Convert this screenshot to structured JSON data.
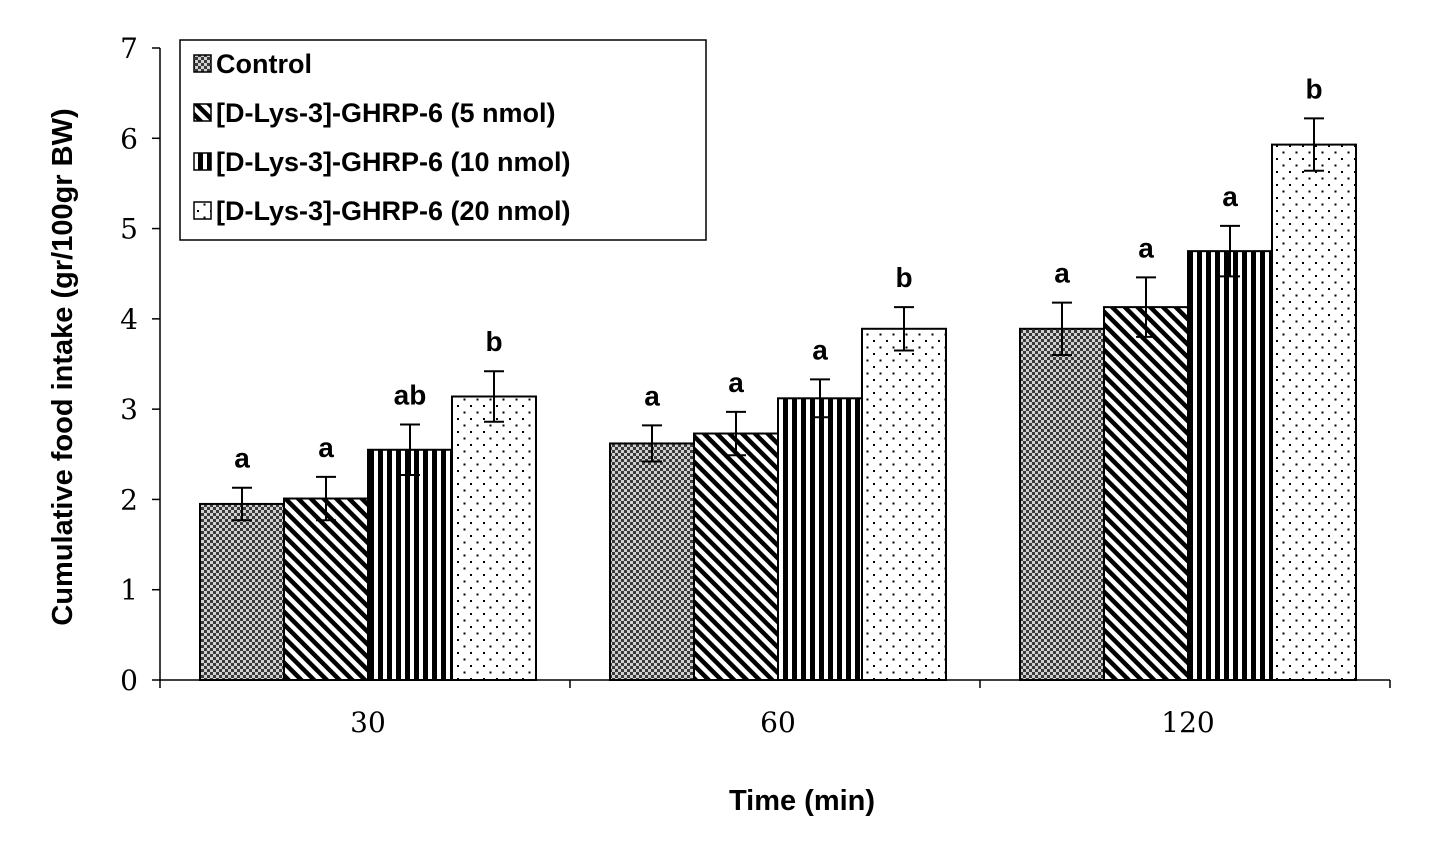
{
  "chart_data": {
    "type": "bar",
    "xlabel": "Time (min)",
    "ylabel": "Cumulative food intake (gr/100gr BW)",
    "ylim": [
      0,
      7
    ],
    "yticks": [
      "0",
      "1",
      "2",
      "3",
      "4",
      "5",
      "6",
      "7"
    ],
    "categories": [
      "30",
      "60",
      "120"
    ],
    "legend_position": "top-left",
    "grid": false,
    "series": [
      {
        "name": "Control",
        "pattern": "checker",
        "values": [
          1.95,
          2.62,
          3.89
        ],
        "errors": [
          0.18,
          0.2,
          0.29
        ],
        "labels": [
          "a",
          "a",
          "a"
        ]
      },
      {
        "name": "[D-Lys-3]-GHRP-6 (5 nmol)",
        "pattern": "diagonal",
        "values": [
          2.01,
          2.73,
          4.13
        ],
        "errors": [
          0.24,
          0.24,
          0.33
        ],
        "labels": [
          "a",
          "a",
          "a"
        ]
      },
      {
        "name": "[D-Lys-3]-GHRP-6 (10 nmol)",
        "pattern": "vertical",
        "values": [
          2.55,
          3.12,
          4.75
        ],
        "errors": [
          0.28,
          0.21,
          0.28
        ],
        "labels": [
          "ab",
          "a",
          "a"
        ]
      },
      {
        "name": "[D-Lys-3]-GHRP-6 (20 nmol)",
        "pattern": "dots",
        "values": [
          3.14,
          3.89,
          5.93
        ],
        "errors": [
          0.28,
          0.24,
          0.29
        ],
        "labels": [
          "b",
          "b",
          "b"
        ]
      }
    ]
  }
}
